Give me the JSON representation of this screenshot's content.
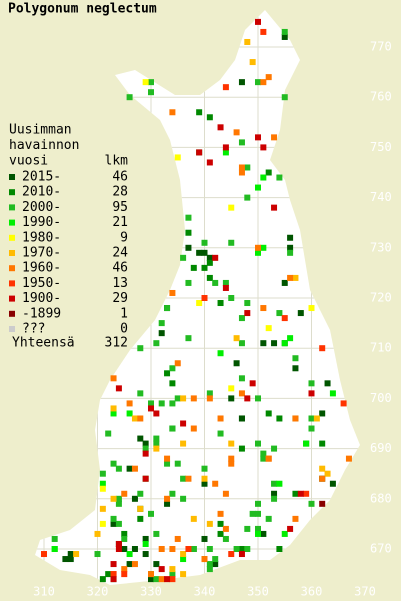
{
  "title": "Polygonum neglectum",
  "legend": {
    "header": [
      "Uusimman",
      "havainnon",
      "vuosi"
    ],
    "count_header": "lkm",
    "items": [
      {
        "label": "2015-",
        "count": 46,
        "color": "#005500"
      },
      {
        "label": "2010-",
        "count": 28,
        "color": "#008800"
      },
      {
        "label": "2000-",
        "count": 95,
        "color": "#22bb22"
      },
      {
        "label": "1990-",
        "count": 21,
        "color": "#00ee00"
      },
      {
        "label": "1980-",
        "count": 9,
        "color": "#ffff00"
      },
      {
        "label": "1970-",
        "count": 24,
        "color": "#ffbb00"
      },
      {
        "label": "1960-",
        "count": 46,
        "color": "#ff7700"
      },
      {
        "label": "1950-",
        "count": 13,
        "color": "#ff3300"
      },
      {
        "label": "1900-",
        "count": 29,
        "color": "#cc0000"
      },
      {
        "label": "-1899",
        "count": 1,
        "color": "#880000"
      },
      {
        "label": "???",
        "count": 0,
        "color": "#cccccc"
      }
    ],
    "total_label": "Yhteensä",
    "total": 312
  },
  "xticks": [
    310,
    320,
    330,
    340,
    350,
    360,
    370
  ],
  "yticks": [
    670,
    680,
    690,
    700,
    710,
    720,
    730,
    740,
    750,
    760,
    770
  ]
}
